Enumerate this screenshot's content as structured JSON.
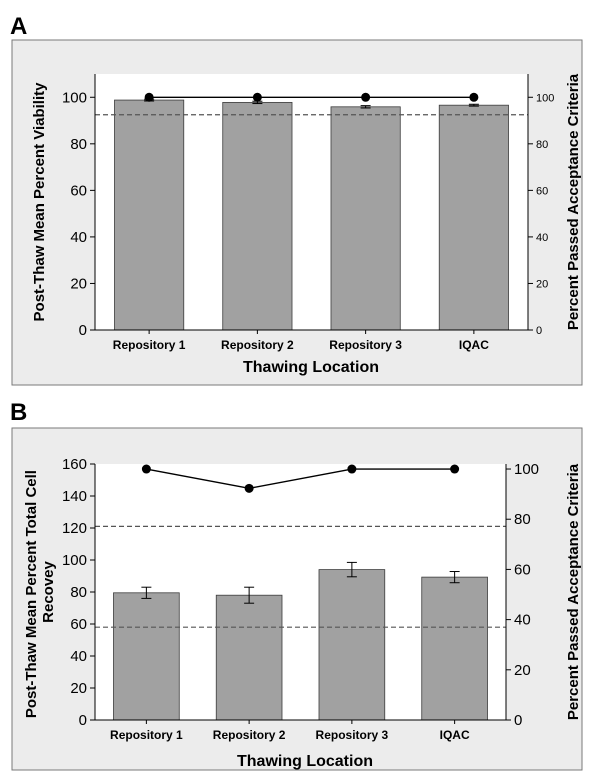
{
  "chart_data": [
    {
      "panel": "A",
      "type": "bar",
      "categories": [
        "Repository 1",
        "Repository 2",
        "Repository 3",
        "IQAC"
      ],
      "series": [
        {
          "values": [
            98.8,
            97.8,
            95.9,
            96.6
          ],
          "error": [
            0.4,
            0.5,
            0.5,
            0.4
          ]
        },
        {
          "values": [
            100,
            100,
            100,
            100
          ],
          "axis": "right",
          "style": "line-markers"
        }
      ],
      "dashed_line_left": 92.5,
      "xlabel": "Thawing Location",
      "ylabel_left": "Post-Thaw Mean Percent Viability",
      "ylabel_right": "Percent Passed Acceptance Criteria",
      "ylim_left": [
        0,
        110
      ],
      "yticks_left": [
        0,
        20,
        40,
        60,
        80,
        100
      ],
      "ylim_right": [
        0,
        110
      ],
      "yticks_right": [
        0,
        20,
        40,
        60,
        80,
        100
      ]
    },
    {
      "panel": "B",
      "type": "bar",
      "categories": [
        "Repository 1",
        "Repository 2",
        "Repository 3",
        "IQAC"
      ],
      "series": [
        {
          "values": [
            79.5,
            78,
            94,
            89.3
          ],
          "error": [
            3.5,
            5,
            4.5,
            3.5
          ]
        },
        {
          "values": [
            100,
            92.3,
            100,
            100
          ],
          "axis": "right",
          "style": "line-markers"
        }
      ],
      "dashed_lines_left": [
        121,
        58
      ],
      "xlabel": "Thawing Location",
      "ylabel_left": "Post-Thaw Mean Percent Total Cell Recovey",
      "ylabel_right": "Percent  Passed Acceptance Criteria",
      "ylim_left": [
        0,
        160
      ],
      "yticks_left": [
        0,
        20,
        40,
        60,
        80,
        100,
        120,
        140,
        160
      ],
      "ylim_right": [
        0,
        102
      ],
      "yticks_right": [
        0,
        20,
        40,
        60,
        80,
        100
      ]
    }
  ]
}
